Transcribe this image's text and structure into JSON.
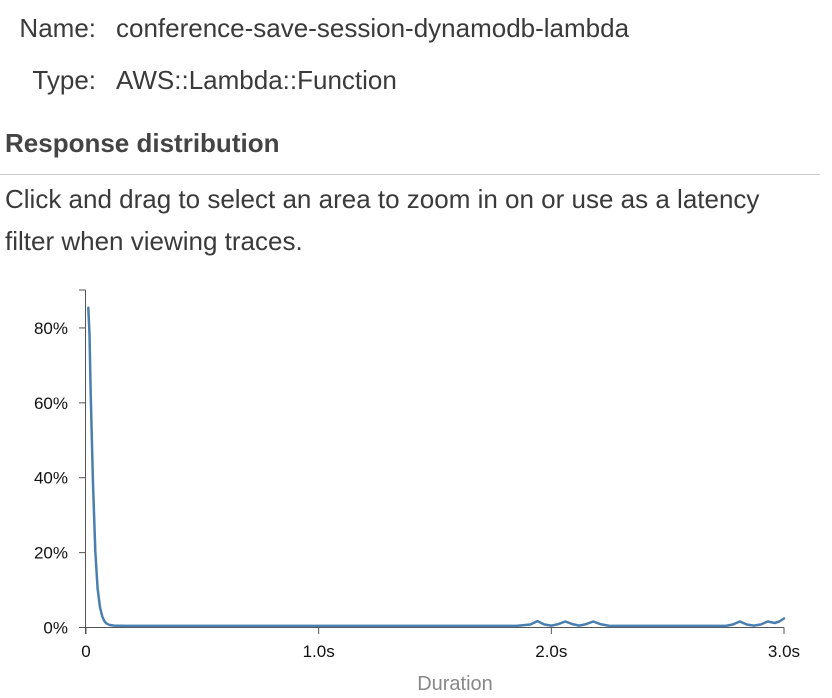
{
  "details": {
    "name_label": "Name:",
    "name_value": "conference-save-session-dynamodb-lambda",
    "type_label": "Type:",
    "type_value": "AWS::Lambda::Function"
  },
  "section": {
    "heading": "Response distribution",
    "help_text": "Click and drag to select an area to zoom in on or use as a latency filter when viewing traces."
  },
  "chart_data": {
    "type": "line",
    "title": "",
    "xlabel": "Duration",
    "ylabel": "",
    "xlim": [
      0,
      3.0
    ],
    "ylim": [
      0,
      90
    ],
    "x_ticks": [
      {
        "value": 0,
        "label": "0"
      },
      {
        "value": 1.0,
        "label": "1.0s"
      },
      {
        "value": 2.0,
        "label": "2.0s"
      },
      {
        "value": 3.0,
        "label": "3.0s"
      }
    ],
    "y_ticks": [
      {
        "value": 0,
        "label": "0%"
      },
      {
        "value": 20,
        "label": "20%"
      },
      {
        "value": 40,
        "label": "40%"
      },
      {
        "value": 60,
        "label": "60%"
      },
      {
        "value": 80,
        "label": "80%"
      }
    ],
    "color": "#4a7fb0",
    "grid": false,
    "legend": "none",
    "series": [
      {
        "name": "",
        "x": [
          0.01,
          0.015,
          0.02,
          0.03,
          0.04,
          0.05,
          0.06,
          0.07,
          0.08,
          0.09,
          0.1,
          0.12,
          0.15,
          0.2,
          0.5,
          1.0,
          1.5,
          1.85,
          1.91,
          1.94,
          1.97,
          2.0,
          2.03,
          2.06,
          2.09,
          2.12,
          2.15,
          2.18,
          2.21,
          2.25,
          2.5,
          2.75,
          2.78,
          2.81,
          2.84,
          2.87,
          2.9,
          2.93,
          2.96,
          2.98,
          3.0
        ],
        "y": [
          85,
          78,
          62,
          38,
          20,
          10,
          5,
          2.5,
          1.2,
          0.6,
          0.3,
          0.1,
          0.05,
          0.02,
          0.02,
          0.02,
          0.02,
          0.02,
          0.4,
          1.3,
          0.4,
          0.1,
          0.5,
          1.2,
          0.5,
          0.1,
          0.5,
          1.2,
          0.5,
          0.02,
          0.02,
          0.02,
          0.4,
          1.2,
          0.4,
          0.1,
          0.4,
          1.2,
          0.8,
          1.2,
          2.0
        ]
      }
    ]
  }
}
